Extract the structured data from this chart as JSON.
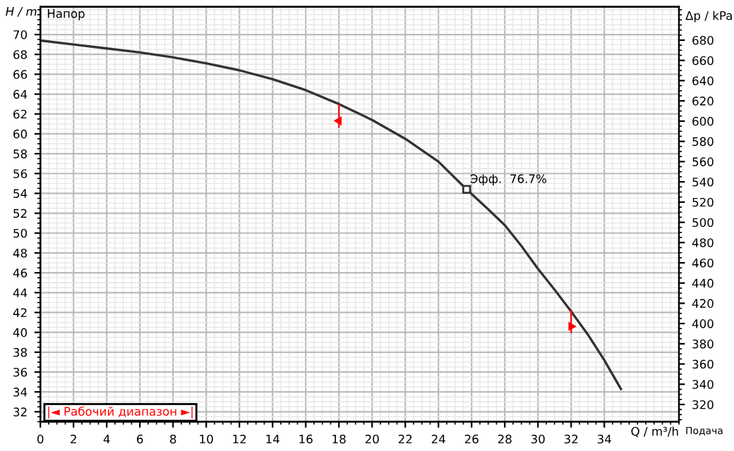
{
  "chart_data": {
    "type": "line",
    "title": "Напор",
    "xlabel": "Q / m³/h",
    "ylabel": "H / m",
    "y2label": "Δp / kPa",
    "x": [
      0,
      2,
      4,
      6,
      8,
      10,
      12,
      14,
      16,
      18,
      20,
      22,
      24,
      25.7,
      27,
      28,
      29,
      30,
      31,
      32,
      33,
      34,
      35
    ],
    "series": [
      {
        "color": "#333333",
        "values": [
          69.4,
          69.0,
          68.6,
          68.2,
          67.7,
          67.1,
          66.4,
          65.5,
          64.4,
          63.0,
          61.4,
          59.5,
          57.2,
          54.4,
          52.4,
          50.8,
          48.7,
          46.4,
          44.3,
          42.1,
          39.8,
          37.2,
          34.3
        ]
      },
      {
        "type": "scatter",
        "marker": "triangle",
        "color": "#ff0000",
        "x": [
          18,
          32
        ],
        "values": [
          61.3,
          40.6
        ]
      }
    ],
    "xlim": [
      0,
      38.5
    ],
    "xticks": [
      0,
      2,
      4,
      6,
      8,
      10,
      12,
      14,
      16,
      18,
      20,
      22,
      24,
      26,
      28,
      30,
      32,
      34
    ],
    "ylim": [
      31,
      72.8
    ],
    "yticks": [
      32,
      34,
      36,
      38,
      40,
      42,
      44,
      46,
      48,
      50,
      52,
      54,
      56,
      58,
      60,
      62,
      64,
      66,
      68,
      70
    ],
    "y2lim": [
      303,
      713
    ],
    "y2ticks": [
      320,
      340,
      360,
      380,
      400,
      420,
      440,
      460,
      480,
      500,
      520,
      540,
      560,
      580,
      600,
      620,
      640,
      660,
      680
    ],
    "annotations": [
      {
        "text": "Эфф.  76.7%",
        "x": 25.7,
        "y": 54.4
      },
      "|◄ Рабочий диапазон ►|",
      "Подача"
    ],
    "grid": true,
    "line_style": "solid",
    "marker": "none"
  }
}
